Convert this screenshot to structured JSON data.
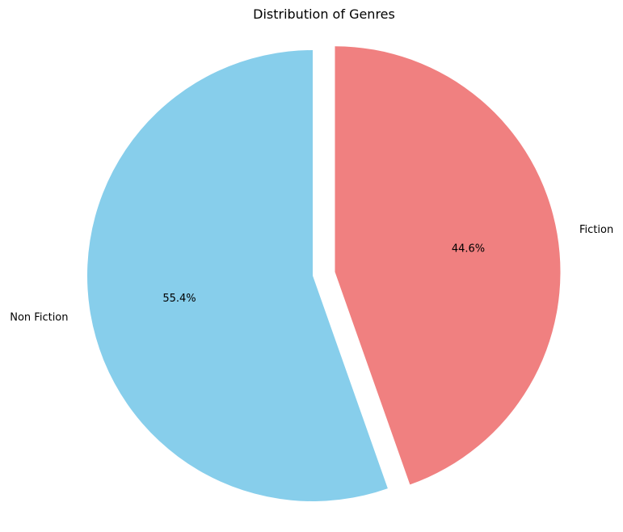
{
  "chart_data": {
    "type": "pie",
    "title": "Distribution of Genres",
    "start_angle": 90,
    "direction": "counterclockwise",
    "slices": [
      {
        "name": "Non Fiction",
        "value": 55.4,
        "pct_label": "55.4%",
        "color": "#87ceeb",
        "explode": 0
      },
      {
        "name": "Fiction",
        "value": 44.6,
        "pct_label": "44.6%",
        "color": "#f08080",
        "explode": 0.1
      }
    ]
  }
}
